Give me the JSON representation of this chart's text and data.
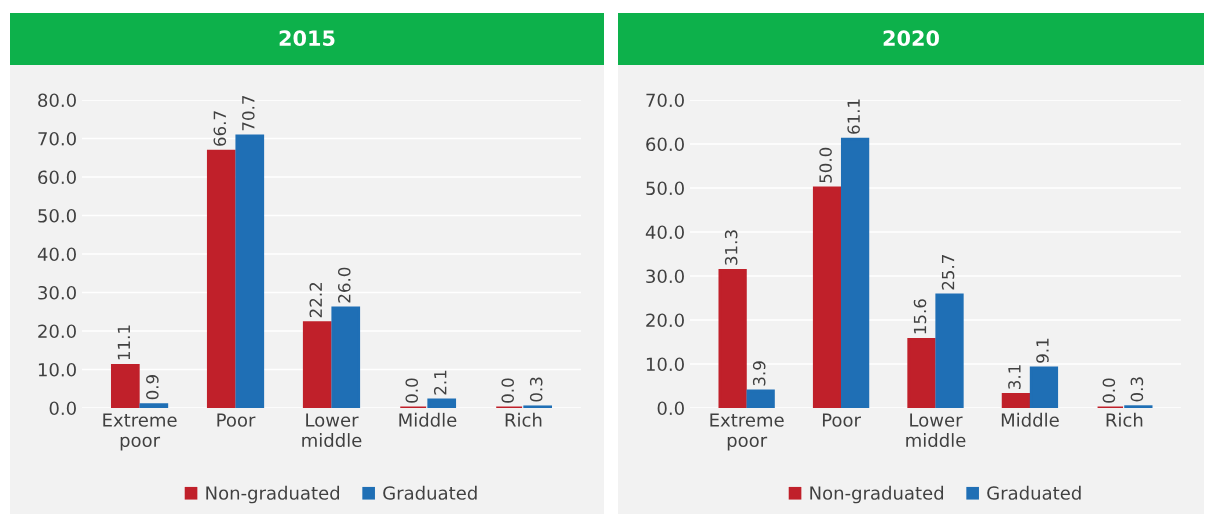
{
  "chart_data": [
    {
      "type": "bar",
      "title": "2015",
      "categories": [
        "Extreme\npoor",
        "Poor",
        "Lower\nmiddle",
        "Middle",
        "Rich"
      ],
      "series": [
        {
          "name": "Non-graduated",
          "color": "#c0202a",
          "values": [
            11.1,
            66.7,
            22.2,
            0.0,
            0.0
          ],
          "value_labels": [
            "11.1",
            "66.7",
            "22.2",
            "0.0",
            "0.0"
          ]
        },
        {
          "name": "Graduated",
          "color": "#1f6fb5",
          "values": [
            0.9,
            70.7,
            26.0,
            2.1,
            0.3
          ],
          "value_labels": [
            "0.9",
            "70.7",
            "26.0",
            "2.1",
            "0.3"
          ]
        }
      ],
      "ylim": [
        0,
        80
      ],
      "yticks": [
        {
          "value": 0,
          "label": "0.0"
        },
        {
          "value": 10,
          "label": "10.0"
        },
        {
          "value": 20,
          "label": "20.0"
        },
        {
          "value": 30,
          "label": "30.0"
        },
        {
          "value": 40,
          "label": "40.0"
        },
        {
          "value": 50,
          "label": "50.0"
        },
        {
          "value": 60,
          "label": "60.0"
        },
        {
          "value": 70,
          "label": "70.0"
        },
        {
          "value": 80,
          "label": "80.0"
        }
      ],
      "grid": "y",
      "legend": "bottom"
    },
    {
      "type": "bar",
      "title": "2020",
      "categories": [
        "Extreme\npoor",
        "Poor",
        "Lower\nmiddle",
        "Middle",
        "Rich"
      ],
      "series": [
        {
          "name": "Non-graduated",
          "color": "#c0202a",
          "values": [
            31.3,
            50.0,
            15.6,
            3.1,
            0.0
          ],
          "value_labels": [
            "31.3",
            "50.0",
            "15.6",
            "3.1",
            "0.0"
          ]
        },
        {
          "name": "Graduated",
          "color": "#1f6fb5",
          "values": [
            3.9,
            61.1,
            25.7,
            9.1,
            0.3
          ],
          "value_labels": [
            "3.9",
            "61.1",
            "25.7",
            "9.1",
            "0.3"
          ]
        }
      ],
      "ylim": [
        0,
        70
      ],
      "yticks": [
        {
          "value": 0,
          "label": "0.0"
        },
        {
          "value": 10,
          "label": "10.0"
        },
        {
          "value": 20,
          "label": "20.0"
        },
        {
          "value": 30,
          "label": "30.0"
        },
        {
          "value": 40,
          "label": "40.0"
        },
        {
          "value": 50,
          "label": "50.0"
        },
        {
          "value": 60,
          "label": "60.0"
        },
        {
          "value": 70,
          "label": "70.0"
        }
      ],
      "grid": "y",
      "legend": "bottom"
    }
  ]
}
